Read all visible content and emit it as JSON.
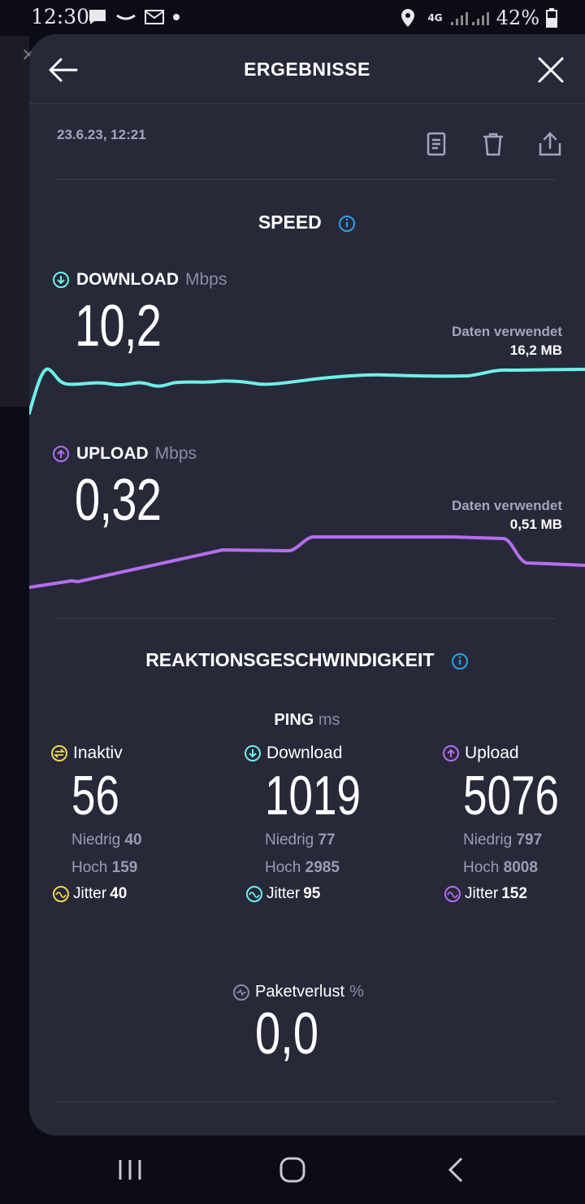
{
  "status_bar": {
    "time": "12:30",
    "network": "4G",
    "battery": "42%",
    "icons_left": [
      "message-icon",
      "amazon-icon",
      "mail-icon",
      "dot-icon"
    ],
    "icons_right": [
      "location-icon",
      "signal-icon",
      "battery-icon"
    ]
  },
  "header": {
    "title": "ERGEBNISSE"
  },
  "result": {
    "date": "23.6.23, 12:21"
  },
  "speed": {
    "section_title": "SPEED",
    "download": {
      "label": "DOWNLOAD",
      "unit": "Mbps",
      "value": "10,2",
      "data_used_label": "Daten verwendet",
      "data_used_value": "16,2 MB",
      "color": "#6ef0e8"
    },
    "upload": {
      "label": "UPLOAD",
      "unit": "Mbps",
      "value": "0,32",
      "data_used_label": "Daten verwendet",
      "data_used_value": "0,51 MB",
      "color": "#b56ef0"
    }
  },
  "reaction": {
    "section_title": "REAKTIONSGESCHWINDIGKEIT",
    "ping_label": "PING",
    "ping_unit": "ms",
    "columns": [
      {
        "label": "Inaktiv",
        "value": "56",
        "low_label": "Niedrig",
        "low": "40",
        "high_label": "Hoch",
        "high": "159",
        "jitter_label": "Jitter",
        "jitter": "40",
        "color": "#f2d54e"
      },
      {
        "label": "Download",
        "value": "1019",
        "low_label": "Niedrig",
        "low": "77",
        "high_label": "Hoch",
        "high": "2985",
        "jitter_label": "Jitter",
        "jitter": "95",
        "color": "#6ef0e8"
      },
      {
        "label": "Upload",
        "value": "5076",
        "low_label": "Niedrig",
        "low": "797",
        "high_label": "Hoch",
        "high": "8008",
        "jitter_label": "Jitter",
        "jitter": "152",
        "color": "#b56ef0"
      }
    ],
    "packet_loss": {
      "label": "Paketverlust",
      "unit": "%",
      "value": "0,0"
    }
  },
  "colors": {
    "sheet_bg": "#272939",
    "info_blue": "#2f9fe8"
  }
}
